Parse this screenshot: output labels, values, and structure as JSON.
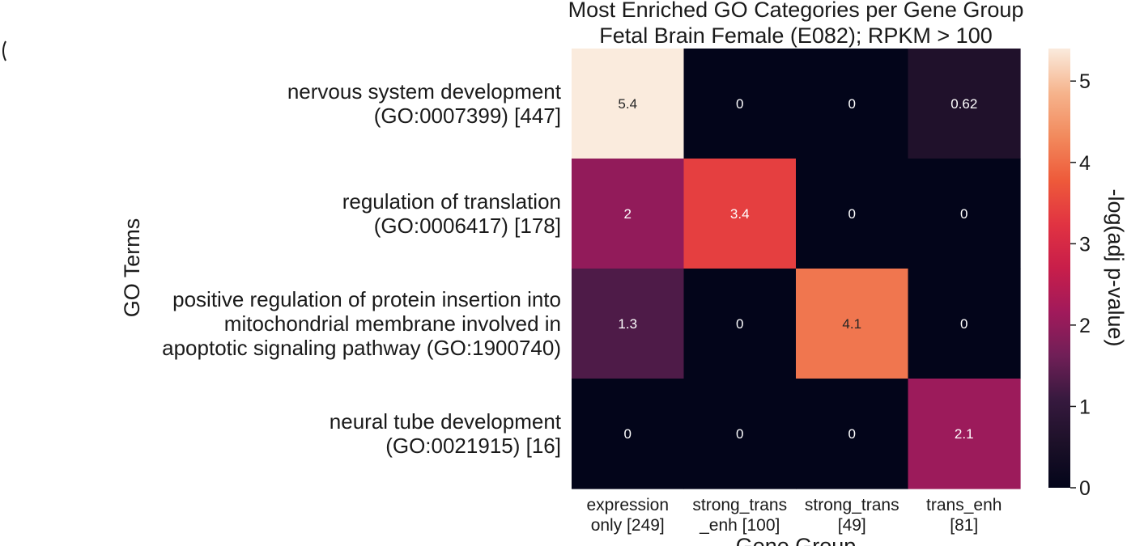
{
  "chart_data": {
    "type": "heatmap",
    "title": [
      "Most Enriched GO Categories per Gene Group",
      "Fetal Brain Female (E082); RPKM > 100"
    ],
    "xlabel": "Gene Group",
    "ylabel": "GO Terms",
    "colorbar_label": "-log(adj p-value)",
    "colorbar_range": [
      0,
      5.4
    ],
    "colorbar_ticks": [
      "0",
      "1",
      "2",
      "3",
      "4",
      "5"
    ],
    "colormap": "rocket",
    "x_categories": [
      [
        "expression",
        "only [249]"
      ],
      [
        "strong_trans",
        "_enh [100]"
      ],
      [
        "strong_trans",
        "[49]"
      ],
      [
        "trans_enh",
        "[81]"
      ]
    ],
    "y_categories": [
      [
        "nervous system development",
        "(GO:0007399) [447]"
      ],
      [
        "regulation of translation",
        "(GO:0006417) [178]"
      ],
      [
        "positive regulation of protein insertion into",
        "mitochondrial membrane involved in",
        "apoptotic signaling pathway (GO:1900740)"
      ],
      [
        "neural tube development",
        "(GO:0021915) [16]"
      ]
    ],
    "values": [
      [
        5.4,
        0,
        0,
        0.62
      ],
      [
        2,
        3.4,
        0,
        0
      ],
      [
        1.3,
        0,
        4.1,
        0
      ],
      [
        0,
        0,
        0,
        2.1
      ]
    ],
    "value_labels": [
      [
        "5.4",
        "0",
        "0",
        "0.62"
      ],
      [
        "2",
        "3.4",
        "0",
        "0"
      ],
      [
        "1.3",
        "0",
        "4.1",
        "0"
      ],
      [
        "0",
        "0",
        "0",
        "2.1"
      ]
    ]
  }
}
